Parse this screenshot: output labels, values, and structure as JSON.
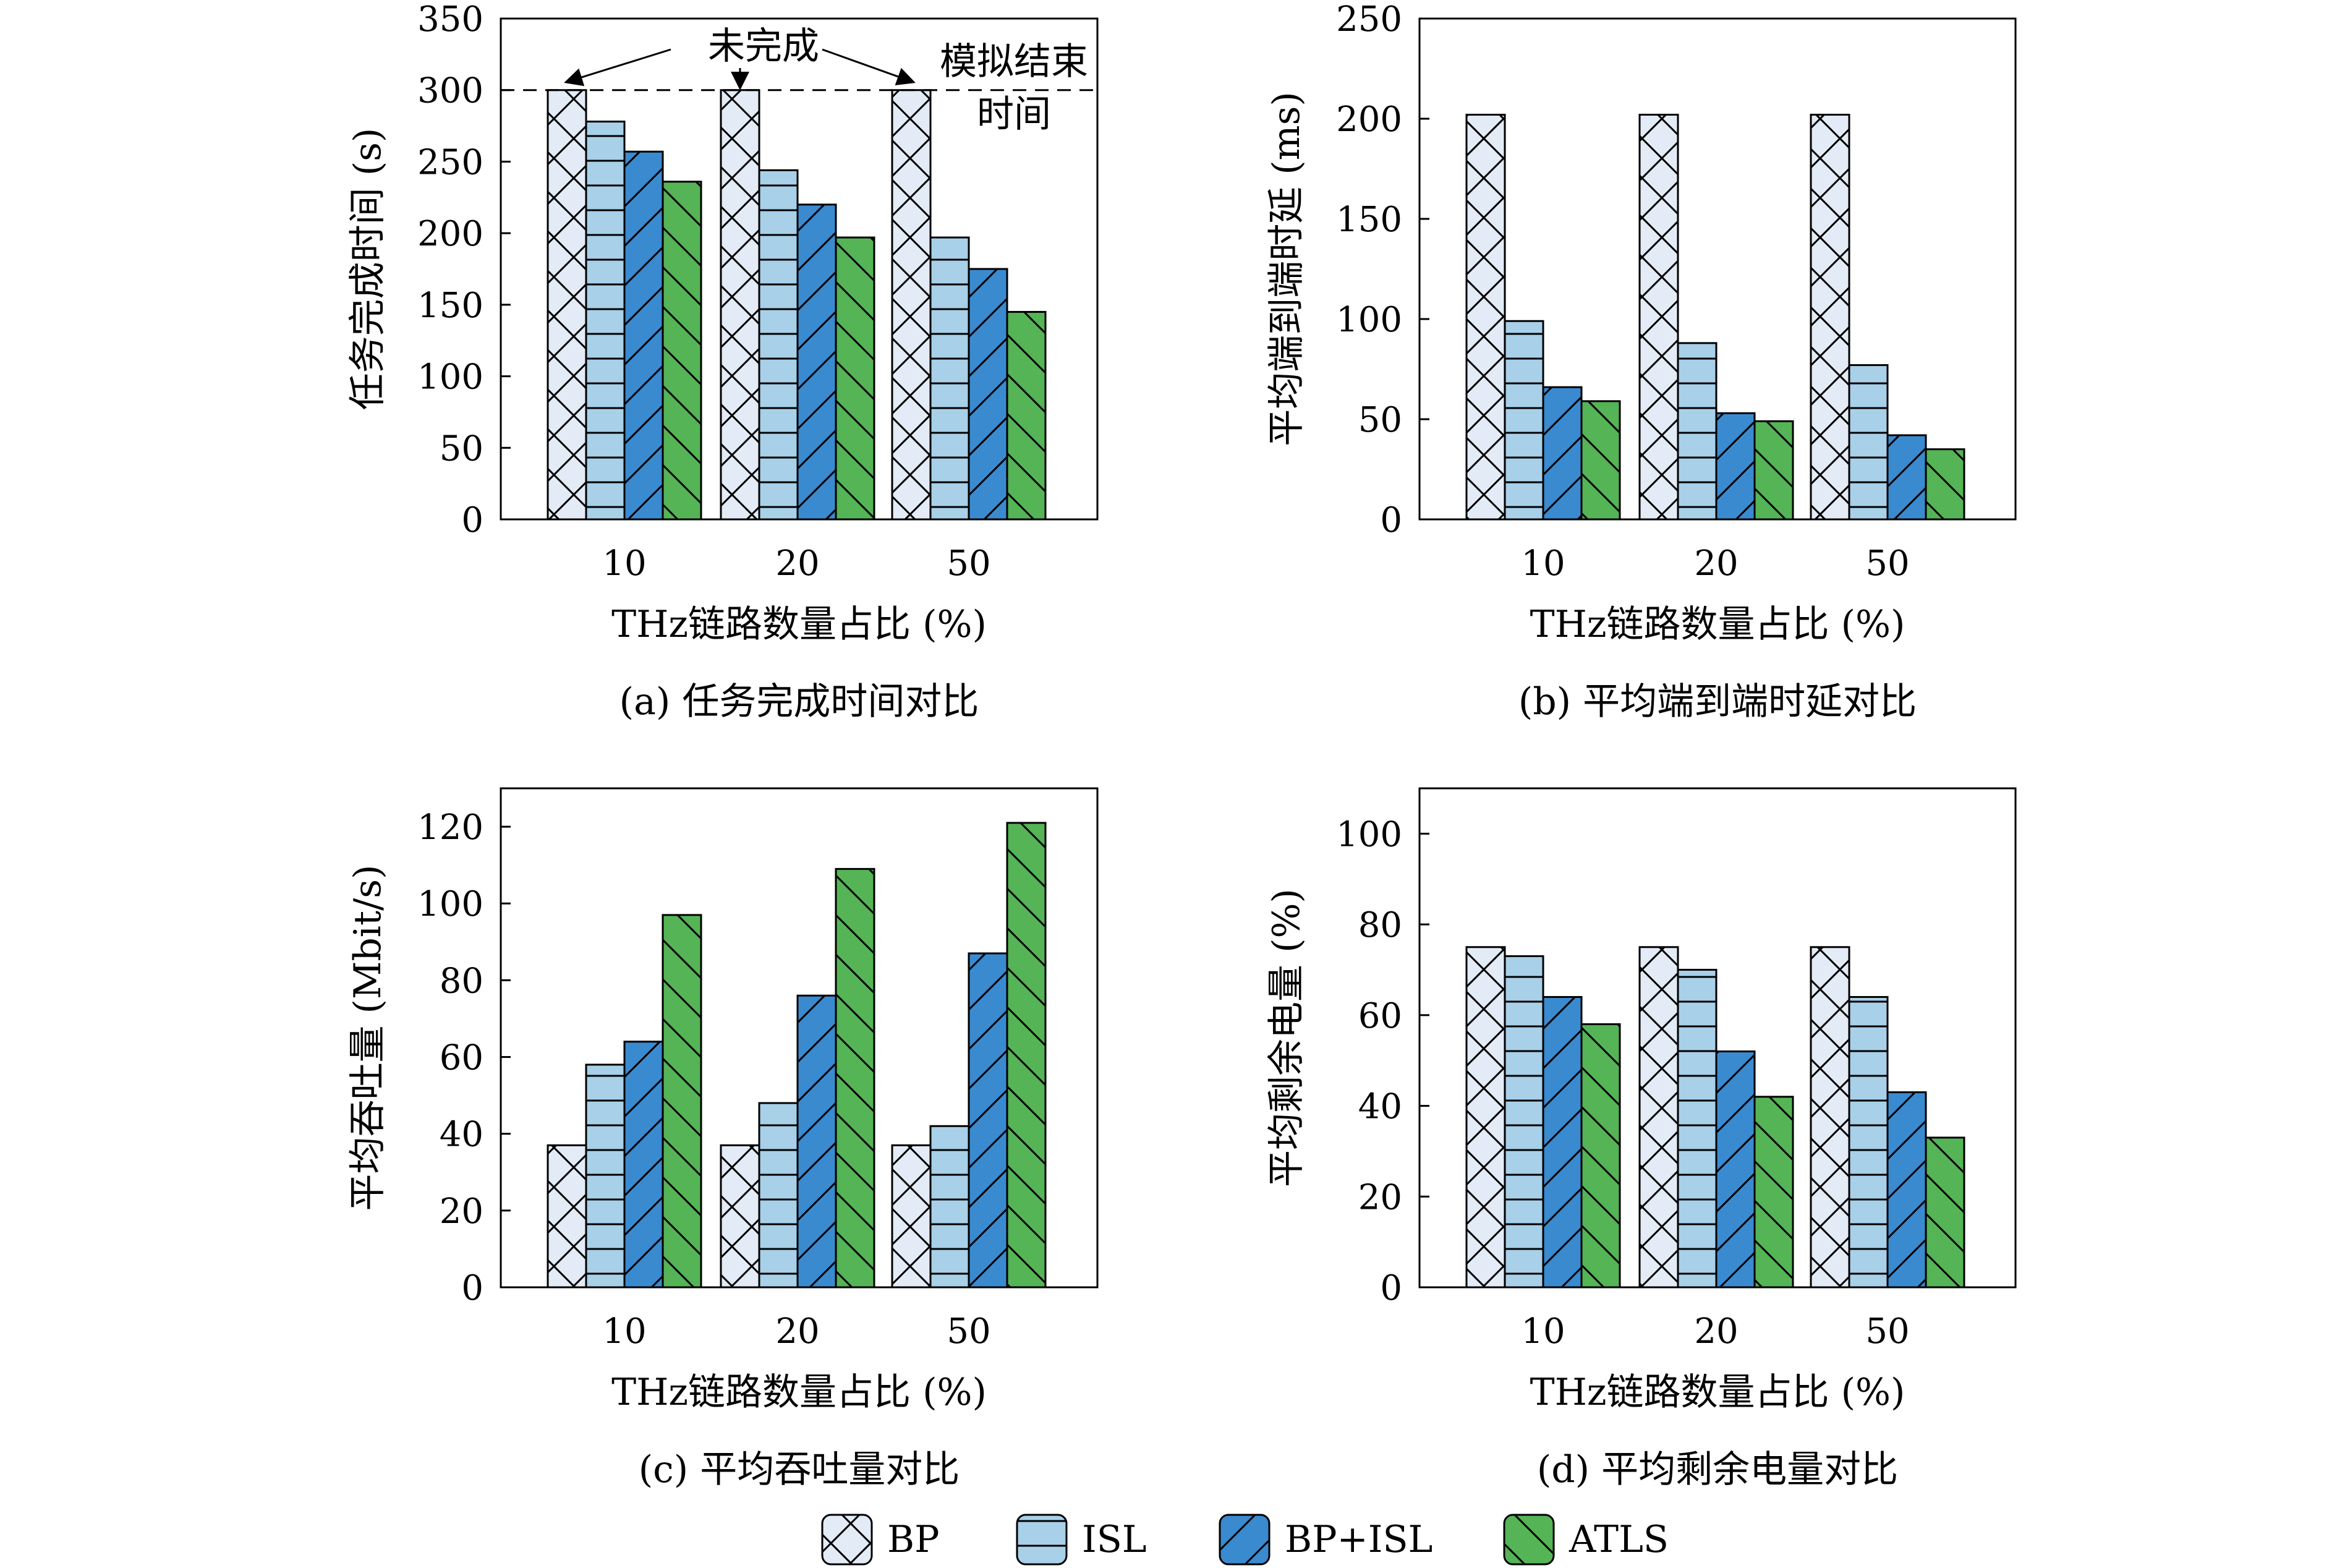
{
  "legend": [
    {
      "name": "BP",
      "color": "#e3ebf6",
      "pattern": "cross"
    },
    {
      "name": "ISL",
      "color": "#a8d0e8",
      "pattern": "horizontal"
    },
    {
      "name": "BP+ISL",
      "color": "#3a8ad0",
      "pattern": "forward"
    },
    {
      "name": "ATLS",
      "color": "#55b455",
      "pattern": "backward"
    }
  ],
  "chart_data": [
    {
      "type": "bar",
      "categories": [
        "10",
        "20",
        "50"
      ],
      "series": [
        {
          "name": "BP",
          "values": [
            300,
            300,
            300
          ]
        },
        {
          "name": "ISL",
          "values": [
            278,
            244,
            197
          ]
        },
        {
          "name": "BP+ISL",
          "values": [
            257,
            220,
            175
          ]
        },
        {
          "name": "ATLS",
          "values": [
            236,
            197,
            145
          ]
        }
      ],
      "ylim": [
        0,
        350
      ],
      "yticks": [
        "0",
        "50",
        "100",
        "150",
        "200",
        "250",
        "300",
        "350"
      ],
      "ytick_values": [
        0,
        50,
        100,
        150,
        200,
        250,
        300,
        350
      ],
      "xlabel": "THz链路数量占比 (%)",
      "ylabel": "任务完成时间 (s)",
      "caption": "(a) 任务完成时间对比",
      "reference_line": {
        "value": 300,
        "label_line1": "模拟结束",
        "label_line2": "时间"
      },
      "annotation": "未完成"
    },
    {
      "type": "bar",
      "categories": [
        "10",
        "20",
        "50"
      ],
      "series": [
        {
          "name": "BP",
          "values": [
            202,
            202,
            202
          ]
        },
        {
          "name": "ISL",
          "values": [
            99,
            88,
            77
          ]
        },
        {
          "name": "BP+ISL",
          "values": [
            66,
            53,
            42
          ]
        },
        {
          "name": "ATLS",
          "values": [
            59,
            49,
            35
          ]
        }
      ],
      "ylim": [
        0,
        250
      ],
      "yticks": [
        "0",
        "50",
        "100",
        "150",
        "200",
        "250"
      ],
      "ytick_values": [
        0,
        50,
        100,
        150,
        200,
        250
      ],
      "xlabel": "THz链路数量占比 (%)",
      "ylabel": "平均端到端时延 (ms)",
      "caption": "(b) 平均端到端时延对比"
    },
    {
      "type": "bar",
      "categories": [
        "10",
        "20",
        "50"
      ],
      "series": [
        {
          "name": "BP",
          "values": [
            37,
            37,
            37
          ]
        },
        {
          "name": "ISL",
          "values": [
            58,
            48,
            42
          ]
        },
        {
          "name": "BP+ISL",
          "values": [
            64,
            76,
            87
          ]
        },
        {
          "name": "ATLS",
          "values": [
            97,
            109,
            121
          ]
        }
      ],
      "ylim": [
        0,
        130
      ],
      "yticks": [
        "0",
        "20",
        "40",
        "60",
        "80",
        "100",
        "120"
      ],
      "ytick_values": [
        0,
        20,
        40,
        60,
        80,
        100,
        120
      ],
      "xlabel": "THz链路数量占比 (%)",
      "ylabel": "平均吞吐量 (Mbit/s)",
      "caption": "(c) 平均吞吐量对比"
    },
    {
      "type": "bar",
      "categories": [
        "10",
        "20",
        "50"
      ],
      "series": [
        {
          "name": "BP",
          "values": [
            75,
            75,
            75
          ]
        },
        {
          "name": "ISL",
          "values": [
            73,
            70,
            64
          ]
        },
        {
          "name": "BP+ISL",
          "values": [
            64,
            52,
            43
          ]
        },
        {
          "name": "ATLS",
          "values": [
            58,
            42,
            33
          ]
        }
      ],
      "ylim": [
        0,
        110
      ],
      "yticks": [
        "0",
        "20",
        "40",
        "60",
        "80",
        "100"
      ],
      "ytick_values": [
        0,
        20,
        40,
        60,
        80,
        100
      ],
      "xlabel": "THz链路数量占比 (%)",
      "ylabel": "平均剩余电量 (%)",
      "caption": "(d) 平均剩余电量对比"
    }
  ]
}
